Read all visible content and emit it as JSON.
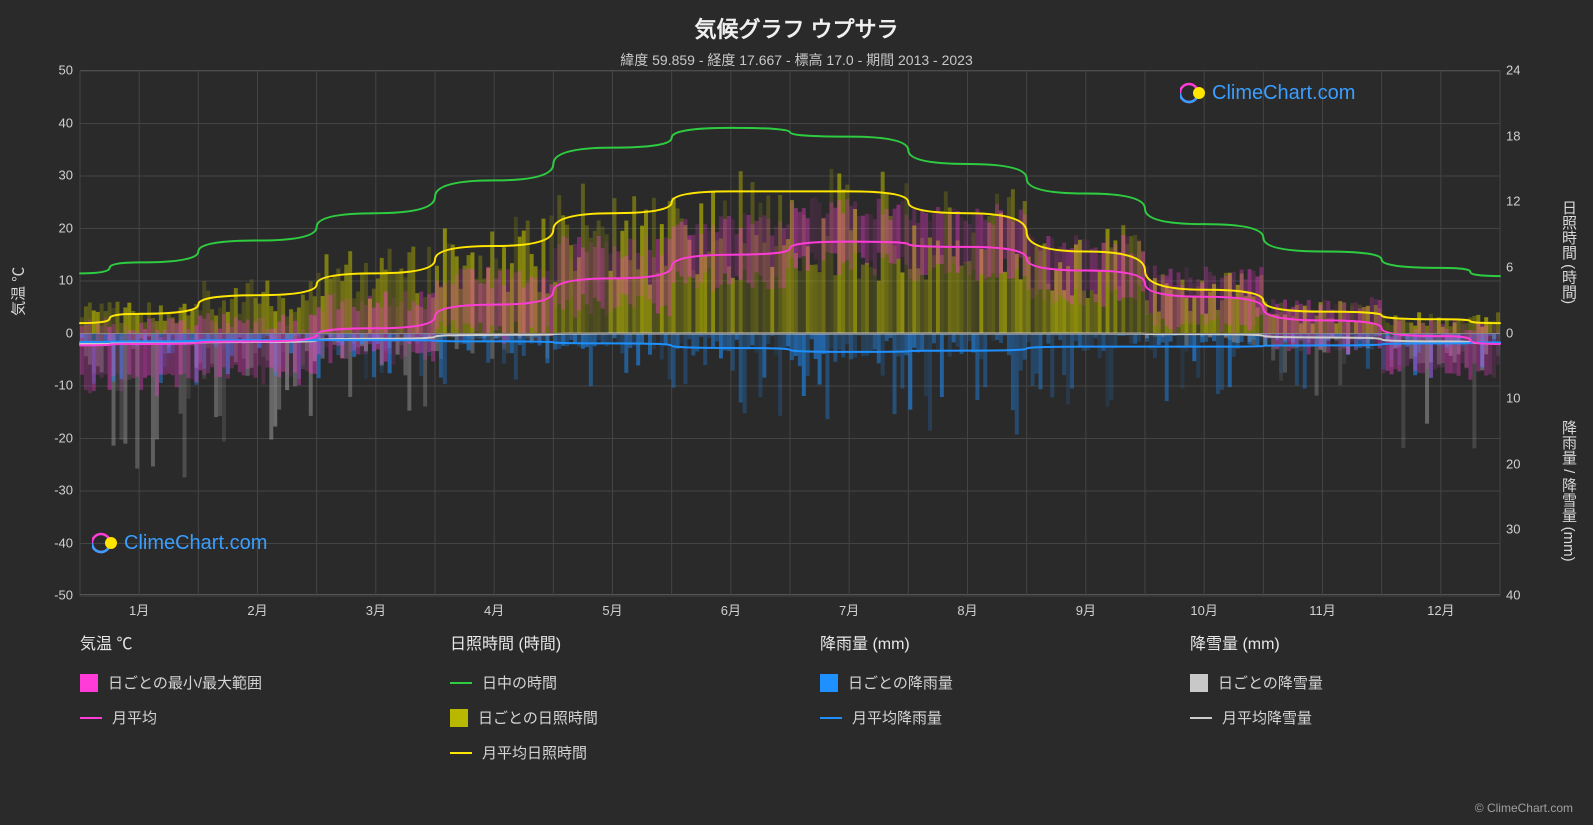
{
  "title": "気候グラフ ウプサラ",
  "subtitle": "緯度 59.859 - 経度 17.667 - 標高 17.0 - 期間 2013 - 2023",
  "chart": {
    "background_color": "#2a2a2a",
    "grid_color": "#444444",
    "axis_text_color": "#d0d0d0",
    "left_axis": {
      "label": "気温 ℃",
      "min": -50,
      "max": 50,
      "ticks": [
        -50,
        -40,
        -30,
        -20,
        -10,
        0,
        10,
        20,
        30,
        40,
        50
      ]
    },
    "right_axis_top": {
      "label": "日照時間 (時間)",
      "ticks": [
        0,
        6,
        12,
        18,
        24
      ],
      "min": 0,
      "max": 24
    },
    "right_axis_bottom": {
      "label": "降雨量 / 降雪量 (mm)",
      "ticks": [
        0,
        10,
        20,
        30,
        40
      ],
      "min": 0,
      "max": 40
    },
    "x_axis": {
      "labels": [
        "1月",
        "2月",
        "3月",
        "4月",
        "5月",
        "6月",
        "7月",
        "8月",
        "9月",
        "10月",
        "11月",
        "12月"
      ]
    },
    "series": {
      "daylight": {
        "color": "#2ecc40",
        "width": 2,
        "values": [
          6.5,
          8.5,
          11,
          14,
          17,
          18.8,
          18,
          15.5,
          12.8,
          10,
          7.5,
          6
        ]
      },
      "avg_sunshine": {
        "color": "#ffe600",
        "width": 2,
        "values": [
          1.8,
          3.5,
          5.5,
          8,
          11,
          13,
          13,
          11,
          7.5,
          4,
          2,
          1.3
        ]
      },
      "avg_temp": {
        "color": "#ff3cd8",
        "width": 2,
        "values_c": [
          -2,
          -1.5,
          1,
          5.5,
          10.5,
          15,
          17.5,
          16.5,
          12,
          7,
          2.5,
          -0.5
        ]
      },
      "avg_rain": {
        "color": "#1e90ff",
        "width": 2,
        "values_mm": [
          1.2,
          1.0,
          1.0,
          1.2,
          1.5,
          2.2,
          2.8,
          2.6,
          2.0,
          2.0,
          1.8,
          1.5
        ]
      },
      "avg_snow": {
        "color": "#cccccc",
        "width": 2,
        "values_mm": [
          1.5,
          1.3,
          0.8,
          0.2,
          0,
          0,
          0,
          0,
          0,
          0.1,
          0.6,
          1.2
        ]
      },
      "daily_sunshine_bars": {
        "color": "#b8b800",
        "opacity": 0.55,
        "max_values": [
          3,
          5,
          8,
          11,
          14,
          16,
          16,
          14,
          10,
          6,
          3,
          2
        ]
      },
      "daily_temp_range": {
        "color": "#ff3cd8",
        "opacity": 0.35,
        "min_c": [
          -12,
          -10,
          -6,
          -2,
          3,
          8,
          11,
          10,
          5,
          0,
          -4,
          -9
        ],
        "max_c": [
          3,
          4,
          8,
          13,
          19,
          23,
          26,
          25,
          19,
          13,
          7,
          3
        ]
      },
      "daily_rain_bars": {
        "color": "#1e90ff",
        "opacity": 0.5,
        "max_mm": [
          8,
          7,
          7,
          8,
          10,
          14,
          18,
          16,
          12,
          12,
          10,
          9
        ]
      },
      "daily_snow_bars": {
        "color": "#b0b0b0",
        "opacity": 0.4,
        "max_mm": [
          22,
          18,
          12,
          4,
          0,
          0,
          0,
          0,
          0,
          2,
          10,
          18
        ]
      }
    }
  },
  "legend": {
    "groups": [
      {
        "header": "気温 ℃",
        "items": [
          {
            "type": "swatch",
            "color": "#ff3cd8",
            "label": "日ごとの最小/最大範囲"
          },
          {
            "type": "line",
            "color": "#ff3cd8",
            "label": "月平均"
          }
        ]
      },
      {
        "header": "日照時間 (時間)",
        "items": [
          {
            "type": "line",
            "color": "#2ecc40",
            "label": "日中の時間"
          },
          {
            "type": "swatch",
            "color": "#b8b800",
            "label": "日ごとの日照時間"
          },
          {
            "type": "line",
            "color": "#ffe600",
            "label": "月平均日照時間"
          }
        ]
      },
      {
        "header": "降雨量 (mm)",
        "items": [
          {
            "type": "swatch",
            "color": "#1e90ff",
            "label": "日ごとの降雨量"
          },
          {
            "type": "line",
            "color": "#1e90ff",
            "label": "月平均降雨量"
          }
        ]
      },
      {
        "header": "降雪量 (mm)",
        "items": [
          {
            "type": "swatch",
            "color": "#c8c8c8",
            "label": "日ごとの降雪量"
          },
          {
            "type": "line",
            "color": "#cccccc",
            "label": "月平均降雪量"
          }
        ]
      }
    ]
  },
  "watermark": {
    "text": "ClimeChart.com",
    "footer": "© ClimeChart.com",
    "color": "#3a9eff"
  }
}
